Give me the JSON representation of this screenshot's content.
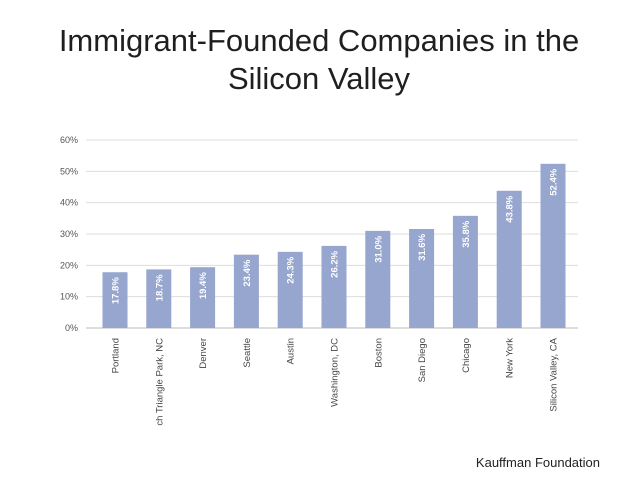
{
  "slide": {
    "title_line1": "Immigrant-Founded Companies in the",
    "title_line2": "Silicon Valley",
    "source": "Kauffman Foundation"
  },
  "chart_data": {
    "type": "bar",
    "title": "",
    "xlabel": "",
    "ylabel": "",
    "ylim": [
      0,
      60
    ],
    "yticks": [
      0,
      10,
      20,
      30,
      40,
      50,
      60
    ],
    "ytick_labels": [
      "0%",
      "10%",
      "20%",
      "30%",
      "40%",
      "50%",
      "60%"
    ],
    "categories": [
      "Portland",
      "ch Triangle Park, NC",
      "Denver",
      "Seattle",
      "Austin",
      "Washington, DC",
      "Boston",
      "San Diego",
      "Chicago",
      "New York",
      "Silicon Valley, CA"
    ],
    "values": [
      17.8,
      18.7,
      19.4,
      23.4,
      24.3,
      26.2,
      31.0,
      31.6,
      35.8,
      43.8,
      52.4
    ],
    "data_labels": [
      "17.8%",
      "18.7%",
      "19.4%",
      "23.4%",
      "24.3%",
      "26.2%",
      "31.0%",
      "31.6%",
      "35.8%",
      "43.8%",
      "52.4%"
    ],
    "grid": true,
    "bar_color": "#97a6cf",
    "grid_color": "#dddddd"
  }
}
